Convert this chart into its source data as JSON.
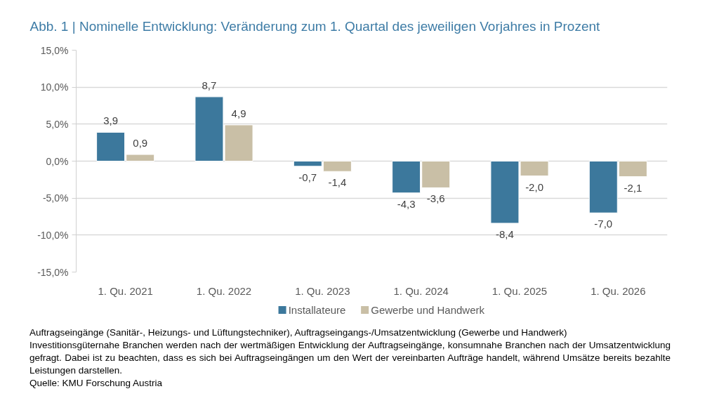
{
  "chart_data": {
    "type": "bar",
    "title": "Abb. 1 | Nominelle Entwicklung: Veränderung zum 1. Quartal des jeweiligen Vorjahres in Prozent",
    "categories": [
      "1. Qu. 2021",
      "1. Qu. 2022",
      "1. Qu. 2023",
      "1. Qu. 2024",
      "1. Qu. 2025",
      "1. Qu. 2026"
    ],
    "series": [
      {
        "name": "Installateure",
        "color": "#3c789c",
        "values": [
          3.9,
          8.7,
          -0.7,
          -4.3,
          -8.4,
          -7.0
        ],
        "value_labels": [
          "3,9",
          "8,7",
          "-0,7",
          "-4,3",
          "-8,4",
          "-7,0"
        ]
      },
      {
        "name": "Gewerbe und Handwerk",
        "color": "#c9bfa6",
        "values": [
          0.9,
          4.9,
          -1.4,
          -3.6,
          -2.0,
          -2.1
        ],
        "value_labels": [
          "0,9",
          "4,9",
          "-1,4",
          "-3,6",
          "-2,0",
          "-2,1"
        ]
      }
    ],
    "ylim": [
      -15,
      15
    ],
    "yticks": [
      {
        "value": -15,
        "label": "-15,0%"
      },
      {
        "value": -10,
        "label": "-10,0%"
      },
      {
        "value": -5,
        "label": "-5,0%"
      },
      {
        "value": 0,
        "label": "0,0%"
      },
      {
        "value": 5,
        "label": "5,0%"
      },
      {
        "value": 10,
        "label": "10,0%"
      },
      {
        "value": 15,
        "label": "15,0%"
      }
    ],
    "grid": "y",
    "legend": "bottom",
    "annotations": [
      "Auftragseingänge (Sanitär-, Heizungs- und Lüftungstechniker), Auftragseingangs-/Umsatzentwicklung (Gewerbe und Handwerk)",
      "Investitionsgüternahe Branchen werden nach der wertmäßigen Entwicklung der Auftragseingänge, konsumnahe Branchen nach der Umsatzentwicklung gefragt. Dabei ist zu beachten, dass es sich bei Auftragseingängen um den Wert der vereinbarten Aufträge handelt, während Umsätze bereits bezahlte Leistungen darstellen.",
      "Quelle: KMU Forschung Austria"
    ]
  }
}
